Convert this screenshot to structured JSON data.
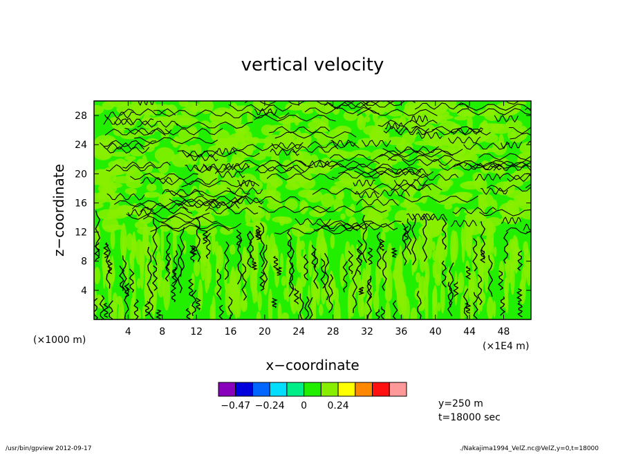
{
  "chart_data": {
    "type": "heatmap",
    "title": "vertical velocity",
    "xlabel": "x−coordinate",
    "ylabel": "z−coordinate",
    "x_unit_left": "(×1000 m)",
    "x_unit_right": "(×1E4 m)",
    "xlim": [
      0,
      51.2
    ],
    "ylim": [
      0,
      30
    ],
    "xticks": [
      4,
      8,
      12,
      16,
      20,
      24,
      28,
      32,
      36,
      40,
      44,
      48
    ],
    "yticks": [
      4,
      8,
      12,
      16,
      20,
      24,
      28
    ],
    "colorbar": {
      "colors": [
        "#8800bb",
        "#0000dd",
        "#0066ff",
        "#00ddff",
        "#00ee88",
        "#22ee00",
        "#88ee00",
        "#ffff00",
        "#ff8800",
        "#ff1111",
        "#ff9999"
      ],
      "labels": [
        {
          "value": -0.47,
          "text": "−0.47"
        },
        {
          "value": -0.24,
          "text": "−0.24"
        },
        {
          "value": 0,
          "text": "0"
        },
        {
          "value": 0.24,
          "text": "0.24"
        }
      ],
      "label_positions": [
        0,
        2,
        4,
        6
      ]
    },
    "field_colors": {
      "primary": "#22ee00",
      "secondary": "#88ee00",
      "contour": "#000000"
    }
  },
  "info": {
    "line1": "y=250  m",
    "line2": "t=18000 sec"
  },
  "footer": {
    "left": "/usr/bin/gpview   2012-09-17",
    "right": "./Nakajima1994_VelZ.nc@VelZ,y=0,t=18000"
  }
}
